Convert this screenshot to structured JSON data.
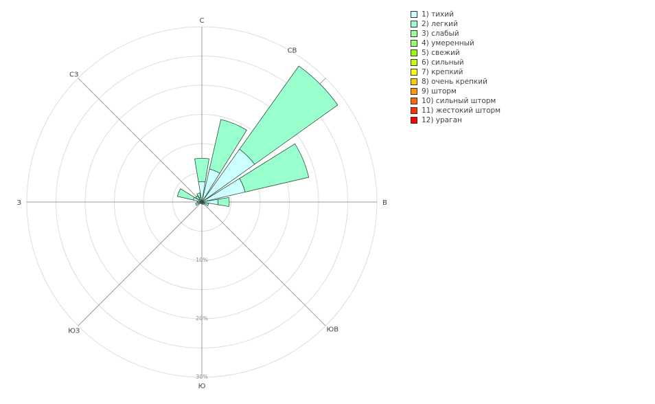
{
  "chart_data": {
    "type": "windrose",
    "directions": [
      "С",
      "СВ",
      "В",
      "ЮВ",
      "Ю",
      "ЮЗ",
      "З",
      "СЗ"
    ],
    "sector_count": 16,
    "radial_ticks": [
      {
        "value": 10,
        "label": "10%"
      },
      {
        "value": 20,
        "label": "20%"
      },
      {
        "value": 30,
        "label": "30%"
      }
    ],
    "r_max": 30,
    "legend": [
      {
        "label": "1) тихий",
        "color": "#ccffff"
      },
      {
        "label": "2) легкий",
        "color": "#99ffcc"
      },
      {
        "label": "3) слабый",
        "color": "#99ff99"
      },
      {
        "label": "4) умеренный",
        "color": "#99ff66"
      },
      {
        "label": "5) свежий",
        "color": "#99ff00"
      },
      {
        "label": "6) сильный",
        "color": "#ccff00"
      },
      {
        "label": "7) крепкий",
        "color": "#ffff00"
      },
      {
        "label": "8) очень крепкий",
        "color": "#ffcc00"
      },
      {
        "label": "9) шторм",
        "color": "#ff9900"
      },
      {
        "label": "10) сильный шторм",
        "color": "#ff6600"
      },
      {
        "label": "11) жестокий шторм",
        "color": "#ff3300"
      },
      {
        "label": "12) ураган",
        "color": "#ff0000"
      }
    ],
    "sectors": [
      {
        "angle": 0,
        "segments": [
          3.5,
          7.5
        ]
      },
      {
        "angle": 22.5,
        "segments": [
          5.8,
          14.5
        ]
      },
      {
        "angle": 45,
        "segments": [
          11.1,
          28.6
        ]
      },
      {
        "angle": 67.5,
        "segments": [
          7.6,
          18.8
        ]
      },
      {
        "angle": 90,
        "segments": [
          2.8,
          4.7
        ]
      },
      {
        "angle": 112.5,
        "segments": [
          0.5,
          1.2
        ]
      },
      {
        "angle": 135,
        "segments": [
          0.3,
          0.5
        ]
      },
      {
        "angle": 157.5,
        "segments": [
          0.2,
          0.4
        ]
      },
      {
        "angle": 180,
        "segments": [
          0.2,
          0.3
        ]
      },
      {
        "angle": 202.5,
        "segments": [
          0.2,
          0.3
        ]
      },
      {
        "angle": 225,
        "segments": [
          0.2,
          0.3
        ]
      },
      {
        "angle": 247.5,
        "segments": [
          0.6,
          1.1
        ]
      },
      {
        "angle": 270,
        "segments": [
          0.4,
          0.8
        ]
      },
      {
        "angle": 292.5,
        "segments": [
          1.5,
          4.3
        ]
      },
      {
        "angle": 315,
        "segments": [
          0.6,
          1.3
        ]
      },
      {
        "angle": 337.5,
        "segments": [
          0.8,
          1.6
        ]
      }
    ]
  }
}
